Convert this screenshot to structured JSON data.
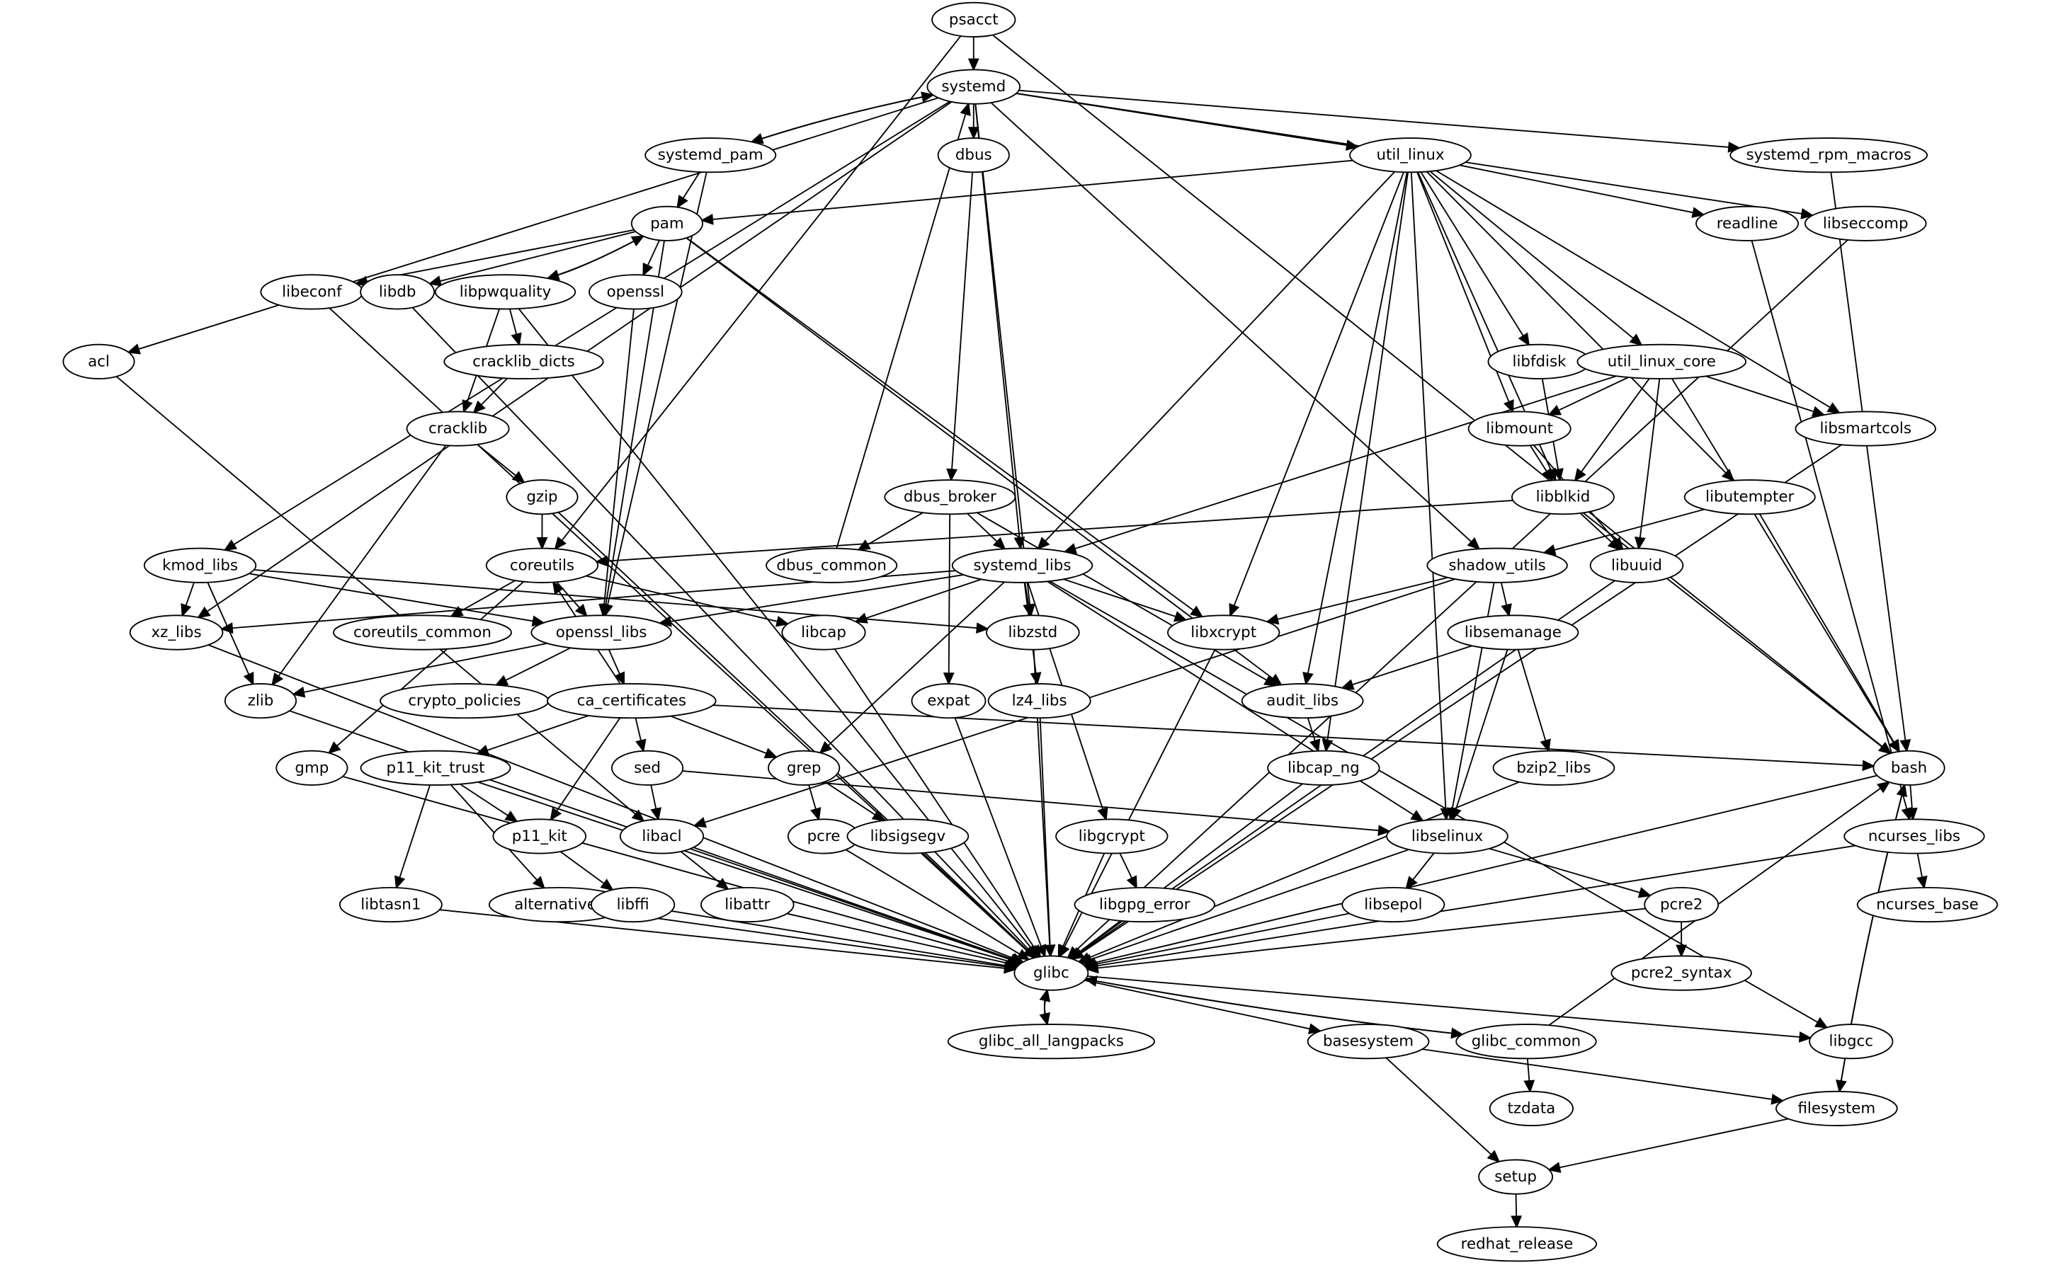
{
  "graph": {
    "nodes": [
      "psacct",
      "systemd",
      "systemd_pam",
      "dbus",
      "util_linux",
      "systemd_rpm_macros",
      "pam",
      "readline",
      "libseccomp",
      "libeconf",
      "libdb",
      "libpwquality",
      "openssl",
      "acl",
      "cracklib_dicts",
      "libfdisk",
      "util_linux_core",
      "cracklib",
      "libmount",
      "libsmartcols",
      "gzip",
      "dbus_broker",
      "libblkid",
      "libutempter",
      "kmod_libs",
      "coreutils",
      "dbus_common",
      "systemd_libs",
      "shadow_utils",
      "libuuid",
      "xz_libs",
      "coreutils_common",
      "openssl_libs",
      "libcap",
      "libzstd",
      "libxcrypt",
      "libsemanage",
      "zlib",
      "crypto_policies",
      "ca_certificates",
      "expat",
      "lz4_libs",
      "audit_libs",
      "gmp",
      "p11_kit_trust",
      "sed",
      "grep",
      "libcap_ng",
      "bzip2_libs",
      "bash",
      "p11_kit",
      "libacl",
      "pcre",
      "libsigsegv",
      "libgcrypt",
      "libselinux",
      "ncurses_libs",
      "libtasn1",
      "alternatives",
      "libffi",
      "libattr",
      "libgpg_error",
      "libsepol",
      "pcre2",
      "ncurses_base",
      "glibc",
      "pcre2_syntax",
      "glibc_all_langpacks",
      "basesystem",
      "glibc_common",
      "libgcc",
      "tzdata",
      "filesystem",
      "setup",
      "redhat_release"
    ],
    "edges": [
      [
        "psacct",
        "systemd"
      ],
      [
        "psacct",
        "coreutils"
      ],
      [
        "psacct",
        "bash"
      ],
      [
        "systemd",
        "systemd_pam"
      ],
      [
        "systemd_pam",
        "systemd"
      ],
      [
        "systemd",
        "dbus"
      ],
      [
        "systemd",
        "util_linux"
      ],
      [
        "systemd",
        "systemd_rpm_macros"
      ],
      [
        "systemd",
        "libseccomp"
      ],
      [
        "systemd",
        "acl"
      ],
      [
        "systemd",
        "kmod_libs"
      ],
      [
        "systemd",
        "xz_libs"
      ],
      [
        "systemd",
        "systemd_libs"
      ],
      [
        "systemd",
        "libzstd"
      ],
      [
        "systemd",
        "shadow_utils"
      ],
      [
        "dbus_common",
        "systemd"
      ],
      [
        "systemd_pam",
        "pam"
      ],
      [
        "systemd_pam",
        "openssl_libs"
      ],
      [
        "dbus",
        "dbus_broker"
      ],
      [
        "util_linux",
        "pam"
      ],
      [
        "util_linux",
        "readline"
      ],
      [
        "util_linux",
        "libsmartcols"
      ],
      [
        "util_linux",
        "libutempter"
      ],
      [
        "util_linux",
        "libfdisk"
      ],
      [
        "util_linux",
        "util_linux_core"
      ],
      [
        "util_linux",
        "libmount"
      ],
      [
        "util_linux",
        "libblkid"
      ],
      [
        "util_linux",
        "systemd_libs"
      ],
      [
        "util_linux",
        "libxcrypt"
      ],
      [
        "util_linux",
        "audit_libs"
      ],
      [
        "util_linux",
        "libcap_ng"
      ],
      [
        "util_linux",
        "libselinux"
      ],
      [
        "systemd_rpm_macros",
        "bash"
      ],
      [
        "readline",
        "ncurses_libs"
      ],
      [
        "libseccomp",
        "glibc"
      ],
      [
        "pam",
        "libeconf"
      ],
      [
        "pam",
        "libdb"
      ],
      [
        "pam",
        "libpwquality"
      ],
      [
        "libpwquality",
        "pam"
      ],
      [
        "pam",
        "openssl"
      ],
      [
        "pam",
        "openssl_libs"
      ],
      [
        "pam",
        "libxcrypt"
      ],
      [
        "pam",
        "audit_libs"
      ],
      [
        "libeconf",
        "glibc"
      ],
      [
        "libdb",
        "glibc"
      ],
      [
        "libpwquality",
        "cracklib_dicts"
      ],
      [
        "libpwquality",
        "cracklib"
      ],
      [
        "libpwquality",
        "glibc"
      ],
      [
        "openssl",
        "openssl_libs"
      ],
      [
        "acl",
        "libacl"
      ],
      [
        "cracklib_dicts",
        "cracklib"
      ],
      [
        "cracklib",
        "gzip"
      ],
      [
        "cracklib",
        "zlib"
      ],
      [
        "gzip",
        "coreutils"
      ],
      [
        "gzip",
        "glibc"
      ],
      [
        "libfdisk",
        "libblkid"
      ],
      [
        "util_linux_core",
        "libmount"
      ],
      [
        "util_linux_core",
        "libblkid"
      ],
      [
        "util_linux_core",
        "libsmartcols"
      ],
      [
        "util_linux_core",
        "libuuid"
      ],
      [
        "util_linux_core",
        "bash"
      ],
      [
        "util_linux_core",
        "systemd_libs"
      ],
      [
        "libmount",
        "libblkid"
      ],
      [
        "libmount",
        "libuuid"
      ],
      [
        "libsmartcols",
        "glibc"
      ],
      [
        "libblkid",
        "libuuid"
      ],
      [
        "libblkid",
        "coreutils"
      ],
      [
        "libblkid",
        "bash"
      ],
      [
        "libutempter",
        "shadow_utils"
      ],
      [
        "libutempter",
        "bash"
      ],
      [
        "dbus_broker",
        "dbus_common"
      ],
      [
        "dbus_broker",
        "systemd_libs"
      ],
      [
        "dbus_broker",
        "expat"
      ],
      [
        "dbus_broker",
        "audit_libs"
      ],
      [
        "kmod_libs",
        "xz_libs"
      ],
      [
        "kmod_libs",
        "zlib"
      ],
      [
        "kmod_libs",
        "openssl_libs"
      ],
      [
        "kmod_libs",
        "libzstd"
      ],
      [
        "coreutils",
        "coreutils_common"
      ],
      [
        "coreutils",
        "openssl_libs"
      ],
      [
        "coreutils",
        "gmp"
      ],
      [
        "coreutils",
        "libcap"
      ],
      [
        "systemd_libs",
        "xz_libs"
      ],
      [
        "systemd_libs",
        "openssl_libs"
      ],
      [
        "systemd_libs",
        "libcap"
      ],
      [
        "systemd_libs",
        "libzstd"
      ],
      [
        "systemd_libs",
        "libxcrypt"
      ],
      [
        "systemd_libs",
        "lz4_libs"
      ],
      [
        "systemd_libs",
        "grep"
      ],
      [
        "systemd_libs",
        "libgcrypt"
      ],
      [
        "systemd_libs",
        "libselinux"
      ],
      [
        "systemd_libs",
        "libgcc"
      ],
      [
        "shadow_utils",
        "libxcrypt"
      ],
      [
        "shadow_utils",
        "libsemanage"
      ],
      [
        "shadow_utils",
        "libselinux"
      ],
      [
        "shadow_utils",
        "libacl"
      ],
      [
        "libuuid",
        "glibc"
      ],
      [
        "xz_libs",
        "glibc"
      ],
      [
        "openssl_libs",
        "zlib"
      ],
      [
        "openssl_libs",
        "crypto_policies"
      ],
      [
        "openssl_libs",
        "ca_certificates"
      ],
      [
        "ca_certificates",
        "coreutils"
      ],
      [
        "libcap",
        "glibc"
      ],
      [
        "libzstd",
        "glibc"
      ],
      [
        "libxcrypt",
        "glibc"
      ],
      [
        "libsemanage",
        "audit_libs"
      ],
      [
        "libsemanage",
        "libselinux"
      ],
      [
        "libsemanage",
        "bzip2_libs"
      ],
      [
        "zlib",
        "glibc"
      ],
      [
        "ca_certificates",
        "p11_kit_trust"
      ],
      [
        "ca_certificates",
        "sed"
      ],
      [
        "ca_certificates",
        "grep"
      ],
      [
        "ca_certificates",
        "p11_kit"
      ],
      [
        "ca_certificates",
        "bash"
      ],
      [
        "expat",
        "glibc"
      ],
      [
        "lz4_libs",
        "glibc"
      ],
      [
        "audit_libs",
        "libcap_ng"
      ],
      [
        "gmp",
        "glibc"
      ],
      [
        "p11_kit_trust",
        "p11_kit"
      ],
      [
        "p11_kit_trust",
        "libtasn1"
      ],
      [
        "p11_kit_trust",
        "alternatives"
      ],
      [
        "p11_kit_trust",
        "glibc"
      ],
      [
        "sed",
        "libacl"
      ],
      [
        "sed",
        "libselinux"
      ],
      [
        "grep",
        "pcre"
      ],
      [
        "grep",
        "libsigsegv"
      ],
      [
        "libcap_ng",
        "glibc"
      ],
      [
        "bzip2_libs",
        "glibc"
      ],
      [
        "bash",
        "ncurses_libs"
      ],
      [
        "bash",
        "glibc"
      ],
      [
        "bash",
        "filesystem"
      ],
      [
        "filesystem",
        "bash"
      ],
      [
        "p11_kit",
        "libffi"
      ],
      [
        "libacl",
        "libattr"
      ],
      [
        "libacl",
        "glibc"
      ],
      [
        "pcre",
        "glibc"
      ],
      [
        "libsigsegv",
        "glibc"
      ],
      [
        "libgcrypt",
        "libgpg_error"
      ],
      [
        "libgcrypt",
        "glibc"
      ],
      [
        "libselinux",
        "libsepol"
      ],
      [
        "libselinux",
        "pcre2"
      ],
      [
        "libselinux",
        "glibc"
      ],
      [
        "ncurses_libs",
        "ncurses_base"
      ],
      [
        "ncurses_libs",
        "glibc"
      ],
      [
        "libtasn1",
        "glibc"
      ],
      [
        "alternatives",
        "glibc"
      ],
      [
        "libffi",
        "glibc"
      ],
      [
        "libattr",
        "glibc"
      ],
      [
        "libgpg_error",
        "glibc"
      ],
      [
        "libsepol",
        "glibc"
      ],
      [
        "pcre2",
        "glibc"
      ],
      [
        "pcre2",
        "pcre2_syntax"
      ],
      [
        "glibc",
        "glibc_all_langpacks"
      ],
      [
        "glibc_all_langpacks",
        "glibc"
      ],
      [
        "glibc",
        "basesystem"
      ],
      [
        "glibc",
        "glibc_common"
      ],
      [
        "glibc_common",
        "glibc"
      ],
      [
        "glibc",
        "libgcc"
      ],
      [
        "glibc_common",
        "bash"
      ],
      [
        "glibc_common",
        "tzdata"
      ],
      [
        "basesystem",
        "setup"
      ],
      [
        "basesystem",
        "filesystem"
      ],
      [
        "filesystem",
        "setup"
      ],
      [
        "setup",
        "redhat_release"
      ]
    ]
  }
}
